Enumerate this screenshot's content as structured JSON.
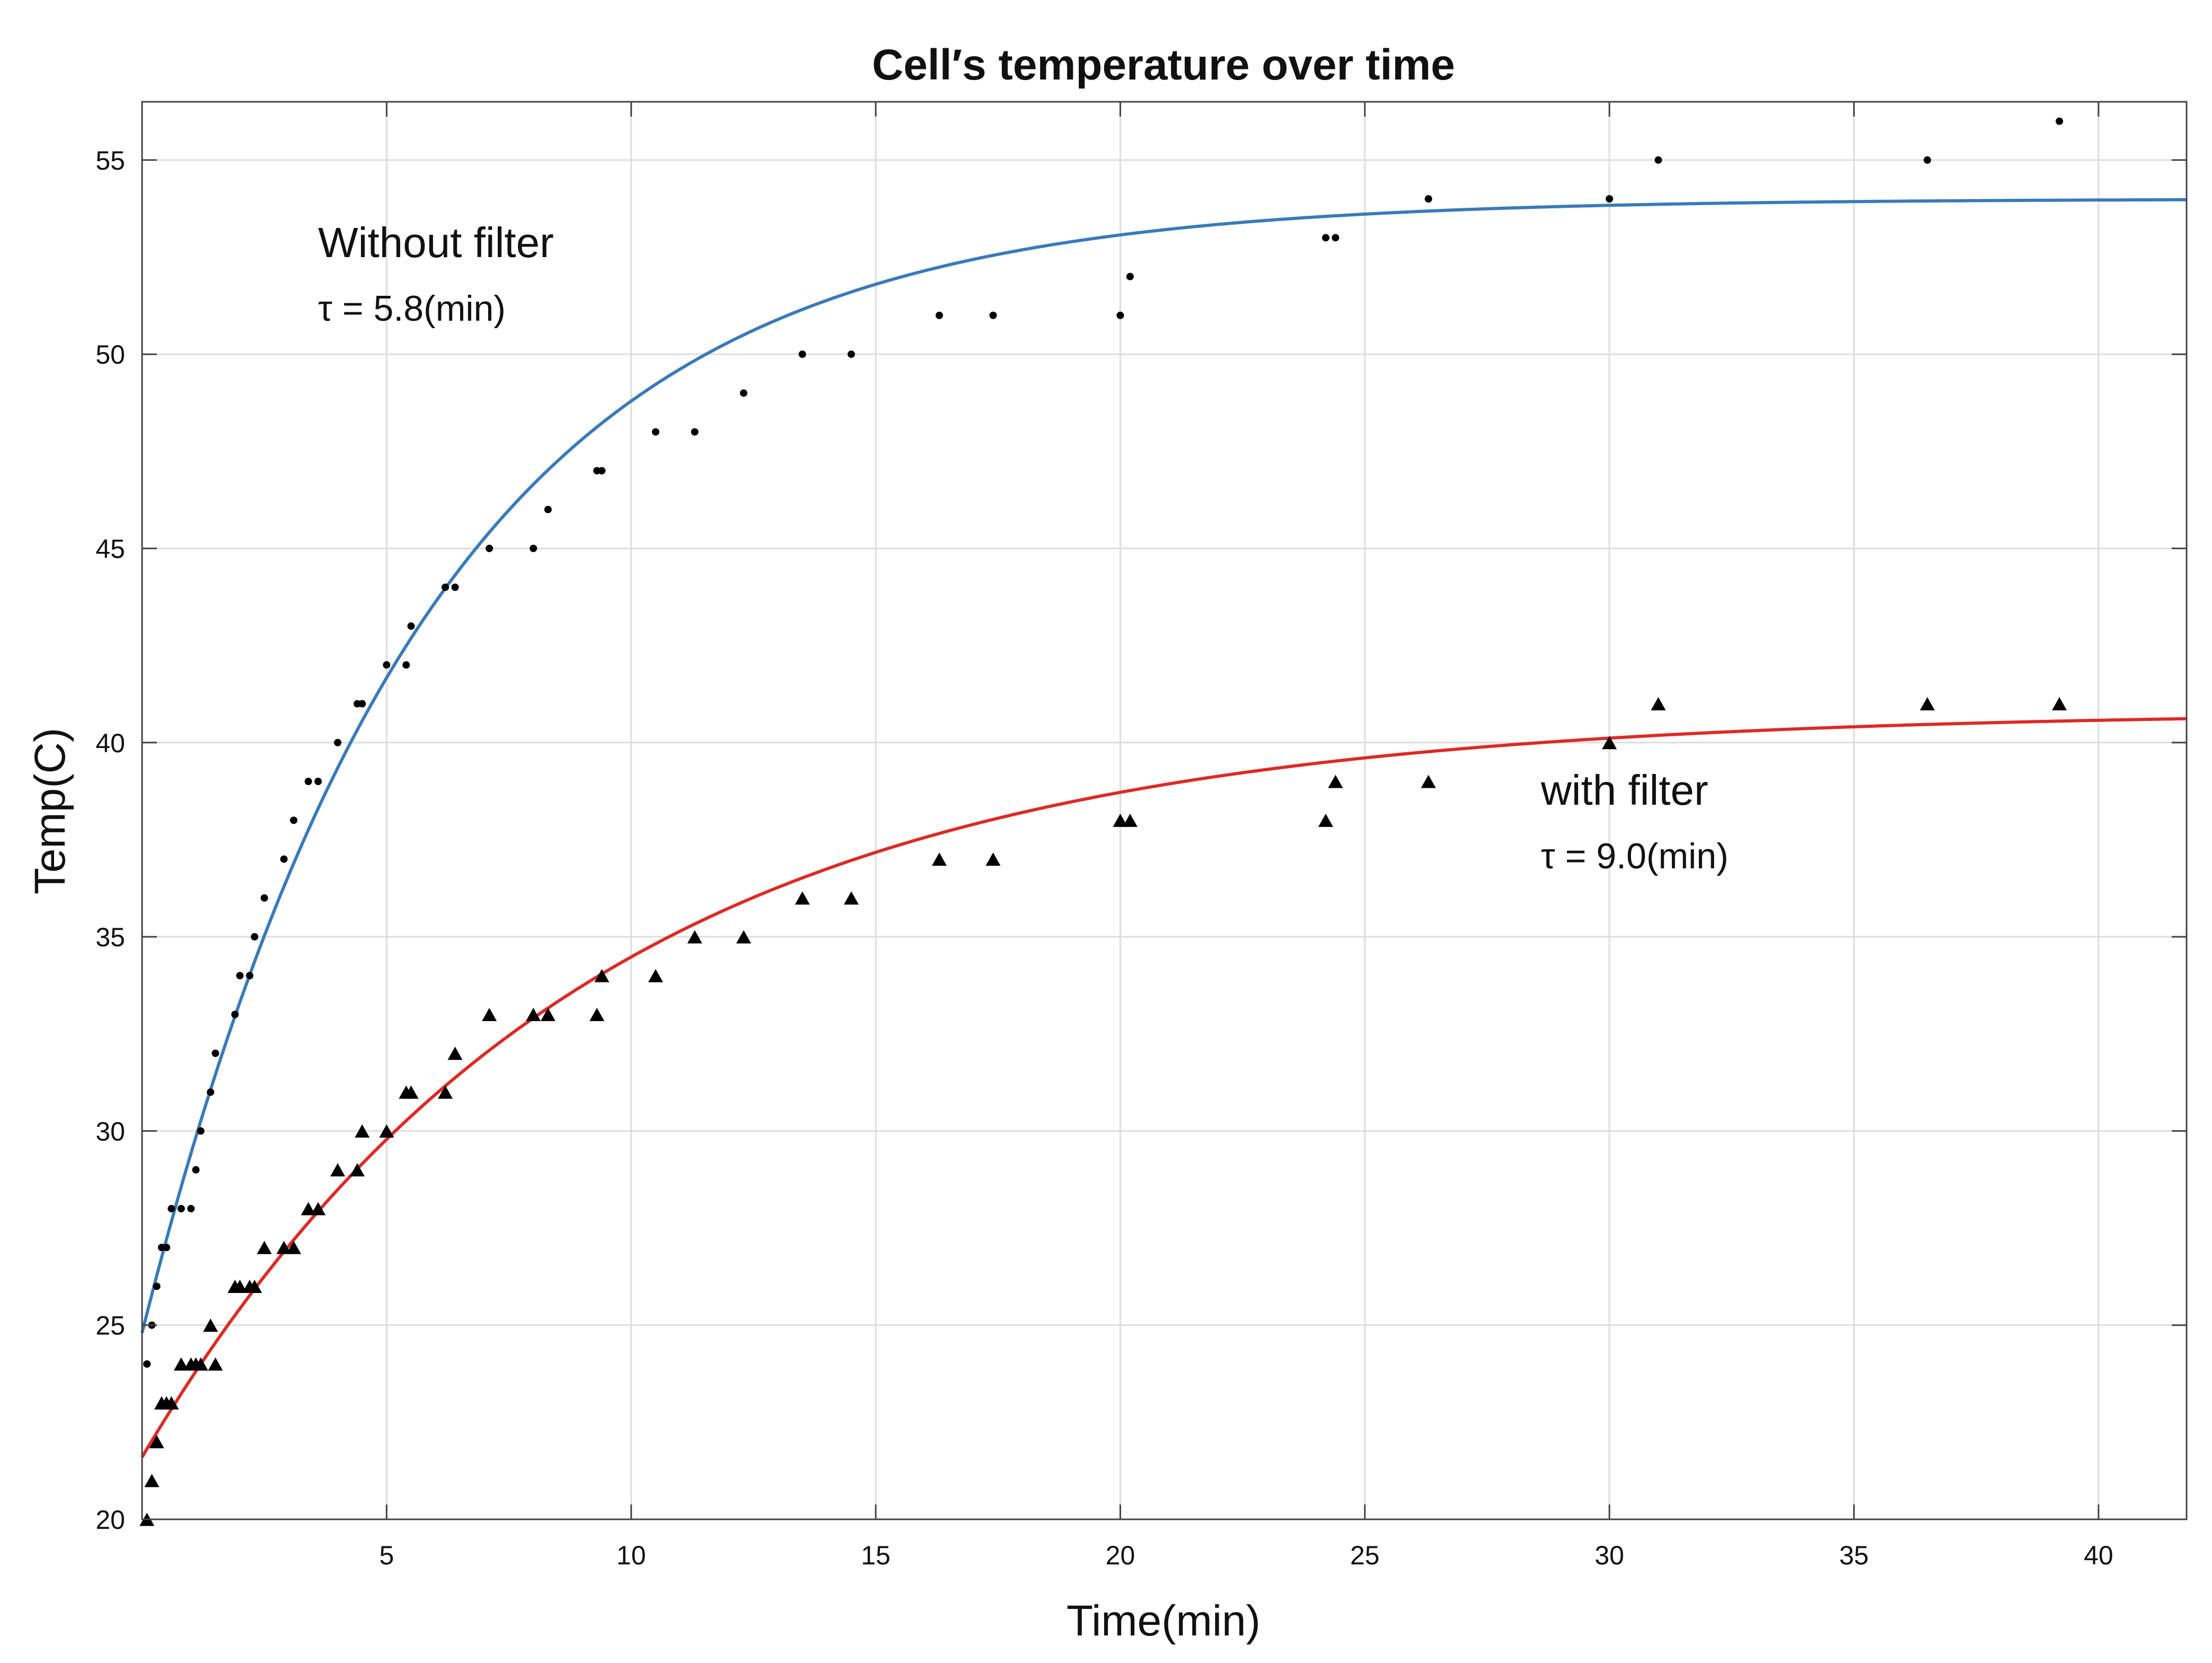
{
  "chart_data": {
    "type": "scatter",
    "title": "Cell′s temperature over time",
    "xlabel": "Time(min)",
    "ylabel": "Temp(C)",
    "xlim": [
      0,
      41.8
    ],
    "ylim": [
      20,
      56.5
    ],
    "xticks": [
      5,
      10,
      15,
      20,
      25,
      30,
      35,
      40
    ],
    "yticks": [
      20,
      25,
      30,
      35,
      40,
      45,
      50,
      55
    ],
    "grid": true,
    "series": [
      {
        "name": "Without filter",
        "color": "#000000",
        "marker": "dot",
        "x": [
          0.1,
          0.2,
          0.3,
          0.4,
          0.5,
          0.6,
          0.8,
          1.0,
          1.1,
          1.2,
          1.4,
          1.5,
          1.9,
          2.0,
          2.2,
          2.3,
          2.5,
          2.9,
          3.1,
          3.4,
          3.6,
          4.0,
          4.4,
          4.5,
          5.0,
          5.4,
          5.5,
          6.2,
          6.4,
          7.1,
          8.0,
          8.3,
          9.3,
          9.4,
          10.5,
          11.3,
          12.3,
          13.5,
          14.5,
          16.3,
          17.4,
          20.0,
          20.2,
          24.2,
          24.4,
          26.3,
          30.0,
          31.0,
          36.5,
          39.2
        ],
        "y": [
          24,
          25,
          26,
          27,
          27,
          28,
          28,
          28,
          29,
          30,
          31,
          32,
          33,
          34,
          34,
          35,
          36,
          37,
          38,
          39,
          39,
          40,
          41,
          41,
          42,
          42,
          43,
          44,
          44,
          45,
          45,
          46,
          47,
          47,
          48,
          48,
          49,
          50,
          50,
          51,
          51,
          51,
          52,
          53,
          53,
          54,
          54,
          55,
          55,
          56
        ]
      },
      {
        "name": "with filter",
        "color": "#000000",
        "marker": "triangle",
        "x": [
          0.1,
          0.2,
          0.3,
          0.4,
          0.5,
          0.6,
          0.8,
          1.0,
          1.1,
          1.2,
          1.4,
          1.5,
          1.9,
          2.0,
          2.2,
          2.3,
          2.5,
          2.9,
          3.1,
          3.4,
          3.6,
          4.0,
          4.4,
          4.5,
          5.0,
          5.4,
          5.5,
          6.2,
          6.4,
          7.1,
          8.0,
          8.3,
          9.3,
          9.4,
          10.5,
          11.3,
          12.3,
          13.5,
          14.5,
          16.3,
          17.4,
          20.0,
          20.2,
          24.2,
          24.4,
          26.3,
          30.0,
          31.0,
          36.5,
          39.2
        ],
        "y": [
          20,
          21,
          22,
          23,
          23,
          23,
          24,
          24,
          24,
          24,
          25,
          24,
          26,
          26,
          26,
          26,
          27,
          27,
          27,
          28,
          28,
          29,
          29,
          30,
          30,
          31,
          31,
          31,
          32,
          33,
          33,
          33,
          33,
          34,
          34,
          35,
          35,
          36,
          36,
          37,
          37,
          38,
          38,
          38,
          39,
          39,
          40,
          41,
          41,
          41
        ]
      },
      {
        "name": "Without filter fit",
        "color": "#3a7ab8",
        "type": "line",
        "T0": 24.8,
        "Tinf": 54.0,
        "tau": 5.8,
        "x_range": [
          0,
          41.8
        ]
      },
      {
        "name": "with filter fit",
        "color": "#dd2a25",
        "type": "line",
        "T0": 21.6,
        "Tinf": 40.8,
        "tau": 9.0,
        "x_range": [
          0,
          41.8
        ]
      }
    ],
    "annotations": [
      {
        "text": "Without filter",
        "tau_label": "τ = 5.8(min)",
        "x": 3.6,
        "y": 52.5
      },
      {
        "text": "with filter",
        "tau_label": "τ = 9.0(min)",
        "x": 28.6,
        "y": 38.4
      }
    ]
  }
}
